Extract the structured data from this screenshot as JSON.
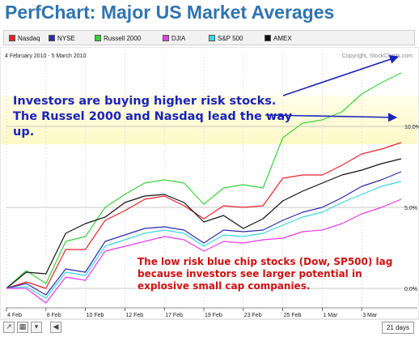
{
  "title": "PerfChart: Major US Market Averages",
  "legend": [
    {
      "name": "Nasdaq",
      "color": "#e8232a"
    },
    {
      "name": "NYSE",
      "color": "#2a2ab0"
    },
    {
      "name": "Russell 2000",
      "color": "#39d23a"
    },
    {
      "name": "DJIA",
      "color": "#e83be8"
    },
    {
      "name": "S&P 500",
      "color": "#39d8e0"
    },
    {
      "name": "AMEX",
      "color": "#111111"
    }
  ],
  "annotations": {
    "top": "Investors are buying higher risk stocks. The Russel 2000 and Nasdaq lead the way up.",
    "bottom": "The low risk blue chip stocks (Dow, SP500) lag because investors see larger potential in explosive small cap companies."
  },
  "footer": {
    "range_label": "21 days"
  },
  "chart_data": {
    "type": "line",
    "date_range": "4 February 2010 - 5 March 2010",
    "copyright": "Copyright, StockCharts.com",
    "x": [
      "4 Feb",
      "5 Feb",
      "8 Feb",
      "9 Feb",
      "10 Feb",
      "11 Feb",
      "12 Feb",
      "16 Feb",
      "17 Feb",
      "18 Feb",
      "19 Feb",
      "22 Feb",
      "23 Feb",
      "24 Feb",
      "25 Feb",
      "26 Feb",
      "1 Mar",
      "2 Mar",
      "3 Mar",
      "4 Mar",
      "5 Mar"
    ],
    "x_tick_labels": [
      "4 Feb",
      "8 Feb",
      "10 Feb",
      "12 Feb",
      "17 Feb",
      "19 Feb",
      "23 Feb",
      "25 Feb",
      "1 Mar",
      "3 Mar"
    ],
    "y_ticks": [
      "0.0%",
      "5.0%",
      "10.0%"
    ],
    "ylim": [
      -1.2,
      14.5
    ],
    "grid": true,
    "series": [
      {
        "name": "Russell 2000",
        "color": "#39d23a",
        "values": [
          0.0,
          1.1,
          0.3,
          2.9,
          3.2,
          5.0,
          5.8,
          6.5,
          6.7,
          6.5,
          5.2,
          6.2,
          6.4,
          6.2,
          9.3,
          10.2,
          10.4,
          10.9,
          12.0,
          12.7,
          13.3
        ]
      },
      {
        "name": "Nasdaq",
        "color": "#e8232a",
        "values": [
          0.0,
          0.4,
          0.0,
          2.4,
          2.4,
          4.2,
          4.8,
          5.5,
          5.7,
          5.1,
          4.3,
          5.1,
          5.0,
          5.1,
          6.8,
          7.0,
          7.0,
          7.6,
          8.3,
          8.6,
          9.0
        ]
      },
      {
        "name": "AMEX",
        "color": "#111111",
        "values": [
          0.0,
          1.0,
          0.9,
          3.4,
          4.0,
          4.4,
          5.3,
          5.7,
          5.8,
          5.3,
          4.1,
          4.5,
          3.7,
          4.3,
          5.4,
          6.0,
          6.5,
          7.0,
          7.3,
          7.7,
          8.0
        ]
      },
      {
        "name": "NYSE",
        "color": "#2a2ab0",
        "values": [
          0.0,
          0.3,
          -0.4,
          1.2,
          1.0,
          2.9,
          3.3,
          3.7,
          3.8,
          3.6,
          2.8,
          3.6,
          3.5,
          3.6,
          4.2,
          4.7,
          5.0,
          5.6,
          6.3,
          6.7,
          7.2
        ]
      },
      {
        "name": "S&P 500",
        "color": "#39d8e0",
        "values": [
          0.0,
          0.1,
          -0.6,
          1.0,
          0.8,
          2.6,
          3.0,
          3.4,
          3.6,
          3.4,
          2.6,
          3.3,
          3.2,
          3.4,
          3.9,
          4.4,
          4.7,
          5.3,
          5.8,
          6.3,
          6.6
        ]
      },
      {
        "name": "DJIA",
        "color": "#e83be8",
        "values": [
          0.0,
          0.0,
          -0.9,
          0.7,
          0.5,
          2.3,
          2.6,
          2.9,
          3.2,
          3.0,
          2.3,
          2.9,
          2.8,
          3.0,
          3.1,
          3.5,
          3.6,
          4.0,
          4.6,
          5.0,
          5.5
        ]
      }
    ]
  }
}
